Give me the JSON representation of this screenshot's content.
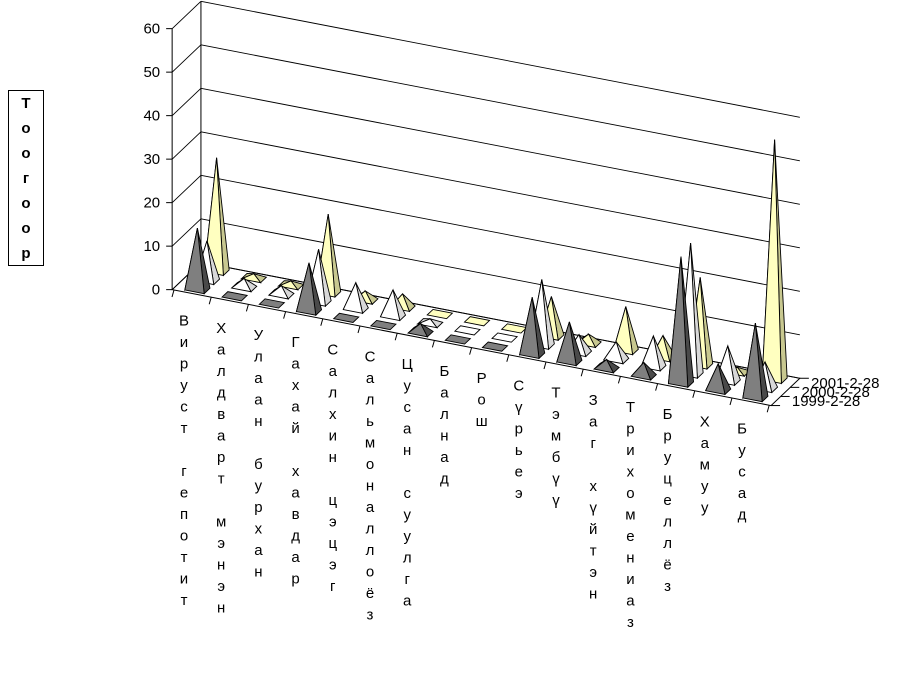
{
  "chart_data": {
    "type": "bar",
    "subtype": "3d-pyramid",
    "title": "",
    "ylabel": "Тоогоор",
    "xlabel": "",
    "ylim": [
      0,
      60
    ],
    "yticks": [
      0,
      10,
      20,
      30,
      40,
      50,
      60
    ],
    "grid": true,
    "categories": [
      "Вируст гепотит",
      "Халдварт мэнэн",
      "Улаан бурхан",
      "Гахай хавдар",
      "Салхин цэцэг",
      "Сальмоналлоёз",
      "Цусан суулга",
      "Балнад",
      "Рош",
      "Сүрьеэ",
      "Тэмбүү",
      "Заг хүйтэн",
      "Трихомениаз",
      "Бруцеллёз",
      "Хамуу",
      "Бусад"
    ],
    "series": [
      {
        "name": "1999-2-28",
        "color": "#7f7f7f",
        "values": [
          14,
          0,
          0,
          11,
          0,
          0,
          2,
          0,
          0,
          13,
          9,
          2,
          3,
          29,
          6,
          17
        ]
      },
      {
        "name": "2000-2-28",
        "color": "#ffffff",
        "values": [
          9,
          2,
          2,
          12,
          6,
          6,
          1,
          0,
          0,
          15,
          4,
          4,
          7,
          30,
          8,
          6
        ]
      },
      {
        "name": "2001-2-28",
        "color": "#ffffc0",
        "values": [
          26,
          1,
          1,
          18,
          2,
          3,
          0,
          0,
          0,
          9,
          2,
          10,
          5,
          20,
          1,
          55
        ]
      }
    ]
  }
}
